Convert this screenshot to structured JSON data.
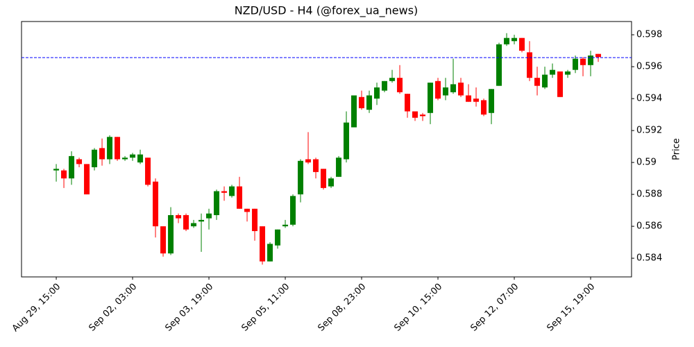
{
  "chart_data": {
    "type": "candlestick",
    "title": "NZD/USD - H4 (@forex_ua_news)",
    "ylabel": "Price",
    "categories": [
      "Aug 29, 15:00",
      null,
      null,
      null,
      null,
      null,
      null,
      null,
      null,
      null,
      "Sep 02, 03:00",
      null,
      null,
      null,
      null,
      null,
      null,
      null,
      null,
      null,
      "Sep 03, 19:00",
      null,
      null,
      null,
      null,
      null,
      null,
      null,
      null,
      null,
      "Sep 05, 11:00",
      null,
      null,
      null,
      null,
      null,
      null,
      null,
      null,
      null,
      "Sep 08, 23:00",
      null,
      null,
      null,
      null,
      null,
      null,
      null,
      null,
      null,
      "Sep 10, 15:00",
      null,
      null,
      null,
      null,
      null,
      null,
      null,
      null,
      null,
      "Sep 12, 07:00",
      null,
      null,
      null,
      null,
      null,
      null,
      null,
      null,
      null,
      "Sep 15, 19:00",
      null
    ],
    "open": [
      0.5895,
      0.5895,
      0.589,
      0.5902,
      0.5899,
      0.5897,
      0.5909,
      0.5902,
      0.5916,
      0.5902,
      0.5903,
      0.59,
      0.5903,
      0.5888,
      0.586,
      0.5843,
      0.5867,
      0.5867,
      0.586,
      0.5863,
      0.5865,
      0.5867,
      0.5882,
      0.5879,
      0.5885,
      0.5871,
      0.5871,
      0.586,
      0.5838,
      0.5848,
      0.586,
      0.5861,
      0.588,
      0.5902,
      0.5902,
      0.5896,
      0.5885,
      0.5891,
      0.5902,
      0.5922,
      0.5941,
      0.5933,
      0.594,
      0.5945,
      0.5951,
      0.5953,
      0.5943,
      0.5932,
      0.593,
      0.5931,
      0.5951,
      0.5942,
      0.5944,
      0.595,
      0.5942,
      0.594,
      0.5939,
      0.5931,
      0.5948,
      0.5974,
      0.5976,
      0.5978,
      0.5969,
      0.5953,
      0.5947,
      0.5955,
      0.5957,
      0.5955,
      0.5958,
      0.5965,
      0.5961,
      0.5968
    ],
    "high": [
      0.5899,
      0.5896,
      0.5907,
      0.5903,
      0.5899,
      0.5909,
      0.5915,
      0.5917,
      0.5916,
      0.5904,
      0.5906,
      0.5908,
      0.5903,
      0.589,
      0.586,
      0.5872,
      0.5868,
      0.5868,
      0.5864,
      0.5868,
      0.5871,
      0.5883,
      0.5885,
      0.5886,
      0.5891,
      0.5871,
      0.5871,
      0.586,
      0.585,
      0.5858,
      0.5864,
      0.588,
      0.5902,
      0.5919,
      0.5903,
      0.5896,
      0.5891,
      0.5904,
      0.5932,
      0.5942,
      0.5945,
      0.5945,
      0.595,
      0.5951,
      0.5958,
      0.5961,
      0.5943,
      0.5932,
      0.5931,
      0.595,
      0.5953,
      0.5953,
      0.5965,
      0.5953,
      0.5949,
      0.5947,
      0.594,
      0.5946,
      0.5975,
      0.5981,
      0.598,
      0.5978,
      0.5976,
      0.596,
      0.596,
      0.5962,
      0.5957,
      0.5958,
      0.5967,
      0.5966,
      0.597,
      0.5968
    ],
    "low": [
      0.5888,
      0.5884,
      0.5886,
      0.5897,
      0.588,
      0.5895,
      0.5898,
      0.5899,
      0.5901,
      0.5901,
      0.5901,
      0.5899,
      0.5885,
      0.5853,
      0.5841,
      0.5842,
      0.5862,
      0.5857,
      0.5859,
      0.5844,
      0.5858,
      0.5864,
      0.5876,
      0.5878,
      0.5871,
      0.5863,
      0.5851,
      0.5836,
      0.5838,
      0.5846,
      0.5859,
      0.586,
      0.5875,
      0.5899,
      0.589,
      0.5883,
      0.5884,
      0.5891,
      0.59,
      0.5922,
      0.5933,
      0.5931,
      0.5936,
      0.5944,
      0.595,
      0.5943,
      0.5928,
      0.5926,
      0.5926,
      0.5924,
      0.5939,
      0.5939,
      0.5943,
      0.5941,
      0.5938,
      0.5935,
      0.5929,
      0.5924,
      0.5948,
      0.5973,
      0.5974,
      0.5969,
      0.5951,
      0.5942,
      0.5946,
      0.5953,
      0.5941,
      0.5953,
      0.5956,
      0.5954,
      0.5954,
      0.5963
    ],
    "close": [
      0.5896,
      0.589,
      0.5904,
      0.5899,
      0.588,
      0.5908,
      0.5902,
      0.5916,
      0.5902,
      0.5903,
      0.5905,
      0.5905,
      0.5886,
      0.586,
      0.5843,
      0.5867,
      0.5865,
      0.5858,
      0.5862,
      0.5864,
      0.5868,
      0.5882,
      0.5881,
      0.5885,
      0.5871,
      0.5869,
      0.5857,
      0.5838,
      0.5849,
      0.5858,
      0.5861,
      0.5879,
      0.5901,
      0.59,
      0.5894,
      0.5884,
      0.589,
      0.5903,
      0.5925,
      0.5942,
      0.5934,
      0.5942,
      0.5947,
      0.5951,
      0.5953,
      0.5944,
      0.5932,
      0.5928,
      0.5929,
      0.595,
      0.594,
      0.5947,
      0.5949,
      0.5942,
      0.5938,
      0.5938,
      0.593,
      0.5946,
      0.5974,
      0.5978,
      0.5978,
      0.597,
      0.5953,
      0.5948,
      0.5955,
      0.5958,
      0.5941,
      0.5957,
      0.5965,
      0.5961,
      0.5967,
      0.5966
    ],
    "up_color": "#008000",
    "down_color": "#ff0000",
    "hline": {
      "value": 0.59657,
      "color": "#0000ff"
    },
    "ylim": [
      0.58283,
      0.59883
    ],
    "yticks": [
      0.584,
      0.586,
      0.588,
      0.59,
      0.592,
      0.594,
      0.596,
      0.598
    ]
  }
}
